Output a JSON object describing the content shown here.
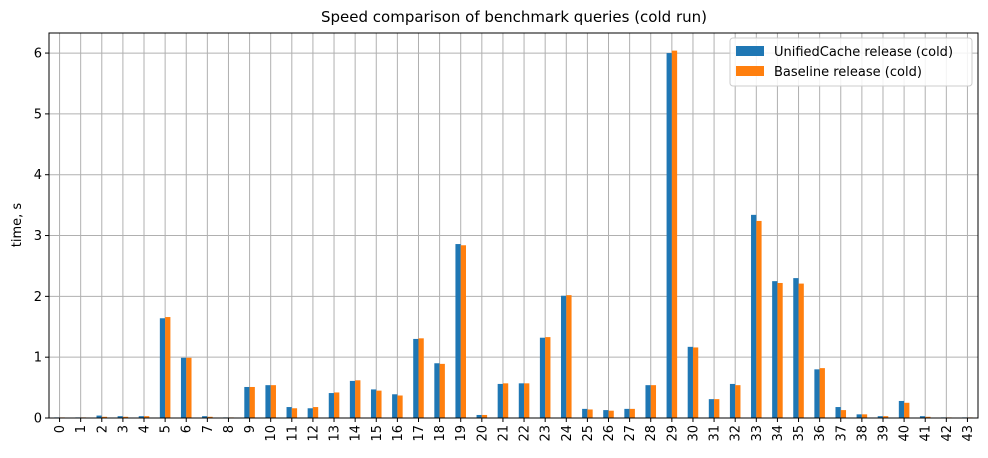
{
  "chart_data": {
    "type": "bar",
    "title": "Speed comparison of benchmark queries (cold run)",
    "xlabel": "",
    "ylabel": "time, s",
    "ylim": [
      0,
      6.33
    ],
    "yticks": [
      "0",
      "1",
      "2",
      "3",
      "4",
      "5",
      "6"
    ],
    "grid": true,
    "legend_position": "top-right",
    "categories": [
      "0",
      "1",
      "2",
      "3",
      "4",
      "5",
      "6",
      "7",
      "8",
      "9",
      "10",
      "11",
      "12",
      "13",
      "14",
      "15",
      "16",
      "17",
      "18",
      "19",
      "20",
      "21",
      "22",
      "23",
      "24",
      "25",
      "26",
      "27",
      "28",
      "29",
      "30",
      "31",
      "32",
      "33",
      "34",
      "35",
      "36",
      "37",
      "38",
      "39",
      "40",
      "41",
      "42",
      "43"
    ],
    "series": [
      {
        "name": "UnifiedCache release (cold)",
        "color": "#1f77b4",
        "values": [
          0.01,
          0.01,
          0.04,
          0.03,
          0.03,
          1.64,
          0.99,
          0.03,
          0.01,
          0.51,
          0.54,
          0.18,
          0.16,
          0.41,
          0.61,
          0.47,
          0.39,
          1.3,
          0.9,
          2.86,
          0.05,
          0.56,
          0.57,
          1.32,
          2.01,
          0.15,
          0.13,
          0.15,
          0.54,
          6.0,
          1.17,
          0.31,
          0.56,
          3.34,
          2.25,
          2.3,
          0.8,
          0.18,
          0.06,
          0.03,
          0.28,
          0.03,
          0.01,
          0.01
        ]
      },
      {
        "name": "Baseline release (cold)",
        "color": "#ff7f0e",
        "values": [
          0.01,
          0.01,
          0.02,
          0.02,
          0.03,
          1.66,
          0.99,
          0.02,
          0.01,
          0.51,
          0.54,
          0.16,
          0.18,
          0.42,
          0.62,
          0.45,
          0.37,
          1.31,
          0.89,
          2.84,
          0.05,
          0.57,
          0.57,
          1.33,
          2.02,
          0.14,
          0.12,
          0.15,
          0.54,
          6.04,
          1.16,
          0.31,
          0.54,
          3.24,
          2.22,
          2.21,
          0.82,
          0.13,
          0.06,
          0.03,
          0.25,
          0.02,
          0.01,
          0.01
        ]
      }
    ]
  }
}
